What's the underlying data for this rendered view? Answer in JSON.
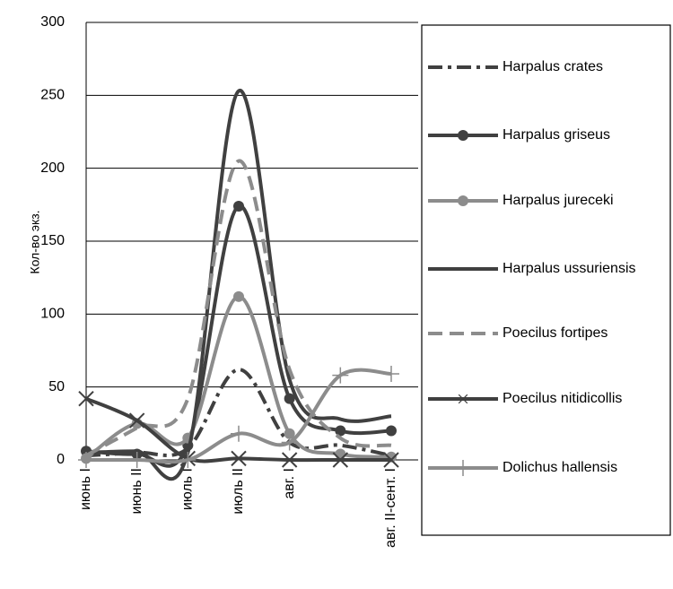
{
  "chart_data": {
    "type": "line",
    "y_label": "Кол-во экз.",
    "categories": [
      "июнь I",
      "июнь II",
      "июль I",
      "июль II",
      "авг. I",
      null,
      "авг. II-сент. I"
    ],
    "ylim": [
      0,
      300
    ],
    "yticks": [
      0,
      50,
      100,
      150,
      200,
      250,
      300
    ],
    "grid": true,
    "series": [
      {
        "name": "Harpalus crates",
        "color": "#404040",
        "style": "dashdot",
        "marker": "none",
        "values": [
          3,
          5,
          8,
          62,
          12,
          10,
          3
        ]
      },
      {
        "name": "Harpalus griseus",
        "color": "#404040",
        "style": "solid",
        "marker": "circle",
        "values": [
          6,
          4,
          10,
          174,
          42,
          20,
          20
        ]
      },
      {
        "name": "Harpalus jureceki",
        "color": "#8c8c8c",
        "style": "solid",
        "marker": "circle",
        "values": [
          1,
          25,
          15,
          112,
          18,
          4,
          2
        ]
      },
      {
        "name": "Harpalus ussuriensis",
        "color": "#404040",
        "style": "solid",
        "marker": "none",
        "values": [
          5,
          6,
          5,
          253,
          55,
          28,
          30
        ]
      },
      {
        "name": "Poecilus fortipes",
        "color": "#8c8c8c",
        "style": "dashed",
        "marker": "none",
        "values": [
          3,
          22,
          42,
          205,
          62,
          15,
          10
        ]
      },
      {
        "name": "Poecilus nitidicollis",
        "color": "#404040",
        "style": "solid",
        "marker": "x",
        "values": [
          42,
          27,
          1,
          1,
          0,
          0,
          0
        ]
      },
      {
        "name": "Dolichus hallensis",
        "color": "#8c8c8c",
        "style": "solid",
        "marker": "plus",
        "values": [
          0,
          0,
          0,
          18,
          12,
          58,
          59
        ]
      }
    ]
  }
}
